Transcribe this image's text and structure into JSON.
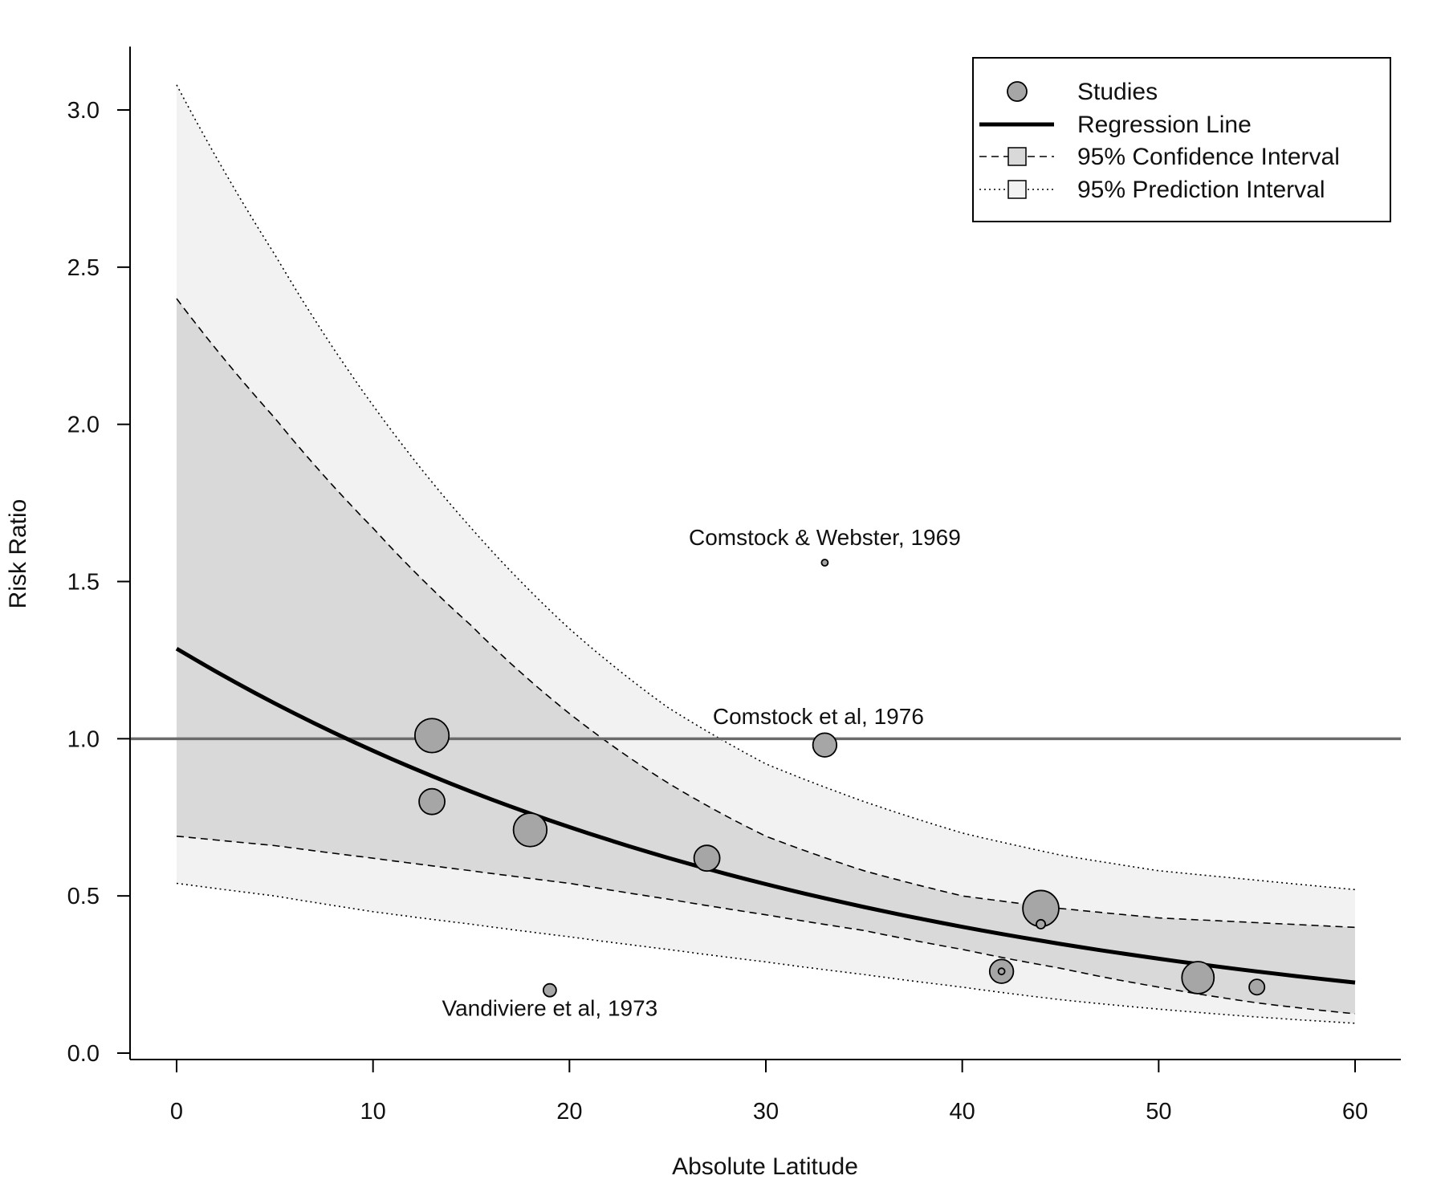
{
  "chart_data": {
    "type": "scatter",
    "title": "",
    "xlabel": "Absolute Latitude",
    "ylabel": "Risk Ratio",
    "xlim": [
      0,
      60
    ],
    "ylim": [
      0,
      3.1
    ],
    "x_ticks": [
      0,
      10,
      20,
      30,
      40,
      50,
      60
    ],
    "y_ticks": [
      0.0,
      0.5,
      1.0,
      1.5,
      2.0,
      2.5,
      3.0
    ],
    "x_tick_labels": [
      "0",
      "10",
      "20",
      "30",
      "40",
      "50",
      "60"
    ],
    "y_tick_labels": [
      "0.0",
      "0.5",
      "1.0",
      "1.5",
      "2.0",
      "2.5",
      "3.0"
    ],
    "reference_line": 1.0,
    "grid": false,
    "legend_position": "top-right",
    "legend": {
      "studies": "Studies",
      "regression": "Regression Line",
      "confidence": "95% Confidence Interval",
      "prediction": "95% Prediction Interval"
    },
    "regression": {
      "intercept_log": 0.252,
      "slope_log": -0.0291
    },
    "curve_x": [
      0,
      5,
      10,
      15,
      20,
      25,
      30,
      35,
      40,
      45,
      50,
      55,
      60
    ],
    "ci_upper": [
      2.4,
      2.02,
      1.67,
      1.36,
      1.08,
      0.86,
      0.69,
      0.58,
      0.5,
      0.46,
      0.43,
      0.415,
      0.4
    ],
    "ci_lower": [
      0.69,
      0.66,
      0.62,
      0.58,
      0.54,
      0.49,
      0.44,
      0.39,
      0.33,
      0.27,
      0.21,
      0.16,
      0.125
    ],
    "pi_upper": [
      3.08,
      2.54,
      2.06,
      1.67,
      1.35,
      1.1,
      0.92,
      0.8,
      0.7,
      0.63,
      0.58,
      0.55,
      0.52
    ],
    "pi_lower": [
      0.54,
      0.5,
      0.45,
      0.41,
      0.37,
      0.33,
      0.29,
      0.25,
      0.21,
      0.17,
      0.14,
      0.115,
      0.095
    ],
    "points": [
      {
        "x": 13,
        "y": 1.01,
        "size": 5.3
      },
      {
        "x": 13,
        "y": 0.8,
        "size": 4.0
      },
      {
        "x": 18,
        "y": 0.71,
        "size": 5.2
      },
      {
        "x": 19,
        "y": 0.2,
        "size": 2.0
      },
      {
        "x": 27,
        "y": 0.62,
        "size": 4.0
      },
      {
        "x": 33,
        "y": 1.56,
        "size": 1.0
      },
      {
        "x": 33,
        "y": 0.98,
        "size": 3.7
      },
      {
        "x": 42,
        "y": 0.26,
        "size": 3.7
      },
      {
        "x": 42,
        "y": 0.26,
        "size": 1.0
      },
      {
        "x": 44,
        "y": 0.46,
        "size": 5.6
      },
      {
        "x": 44,
        "y": 0.41,
        "size": 1.4
      },
      {
        "x": 52,
        "y": 0.24,
        "size": 5.0
      },
      {
        "x": 55,
        "y": 0.21,
        "size": 2.4
      }
    ],
    "annotations": [
      {
        "text": "Comstock & Webster, 1969",
        "x": 33,
        "y": 1.56
      },
      {
        "text": "Comstock et al, 1976",
        "x": 33,
        "y": 0.98
      },
      {
        "text": "Vandiviere et al, 1973",
        "x": 19,
        "y": 0.2
      }
    ],
    "colors": {
      "pi_band": "#f2f2f2",
      "ci_band": "#d9d9d9",
      "point_fill": "#a6a6a6",
      "reference_line": "#6b6b6b",
      "ink": "#000000"
    }
  }
}
